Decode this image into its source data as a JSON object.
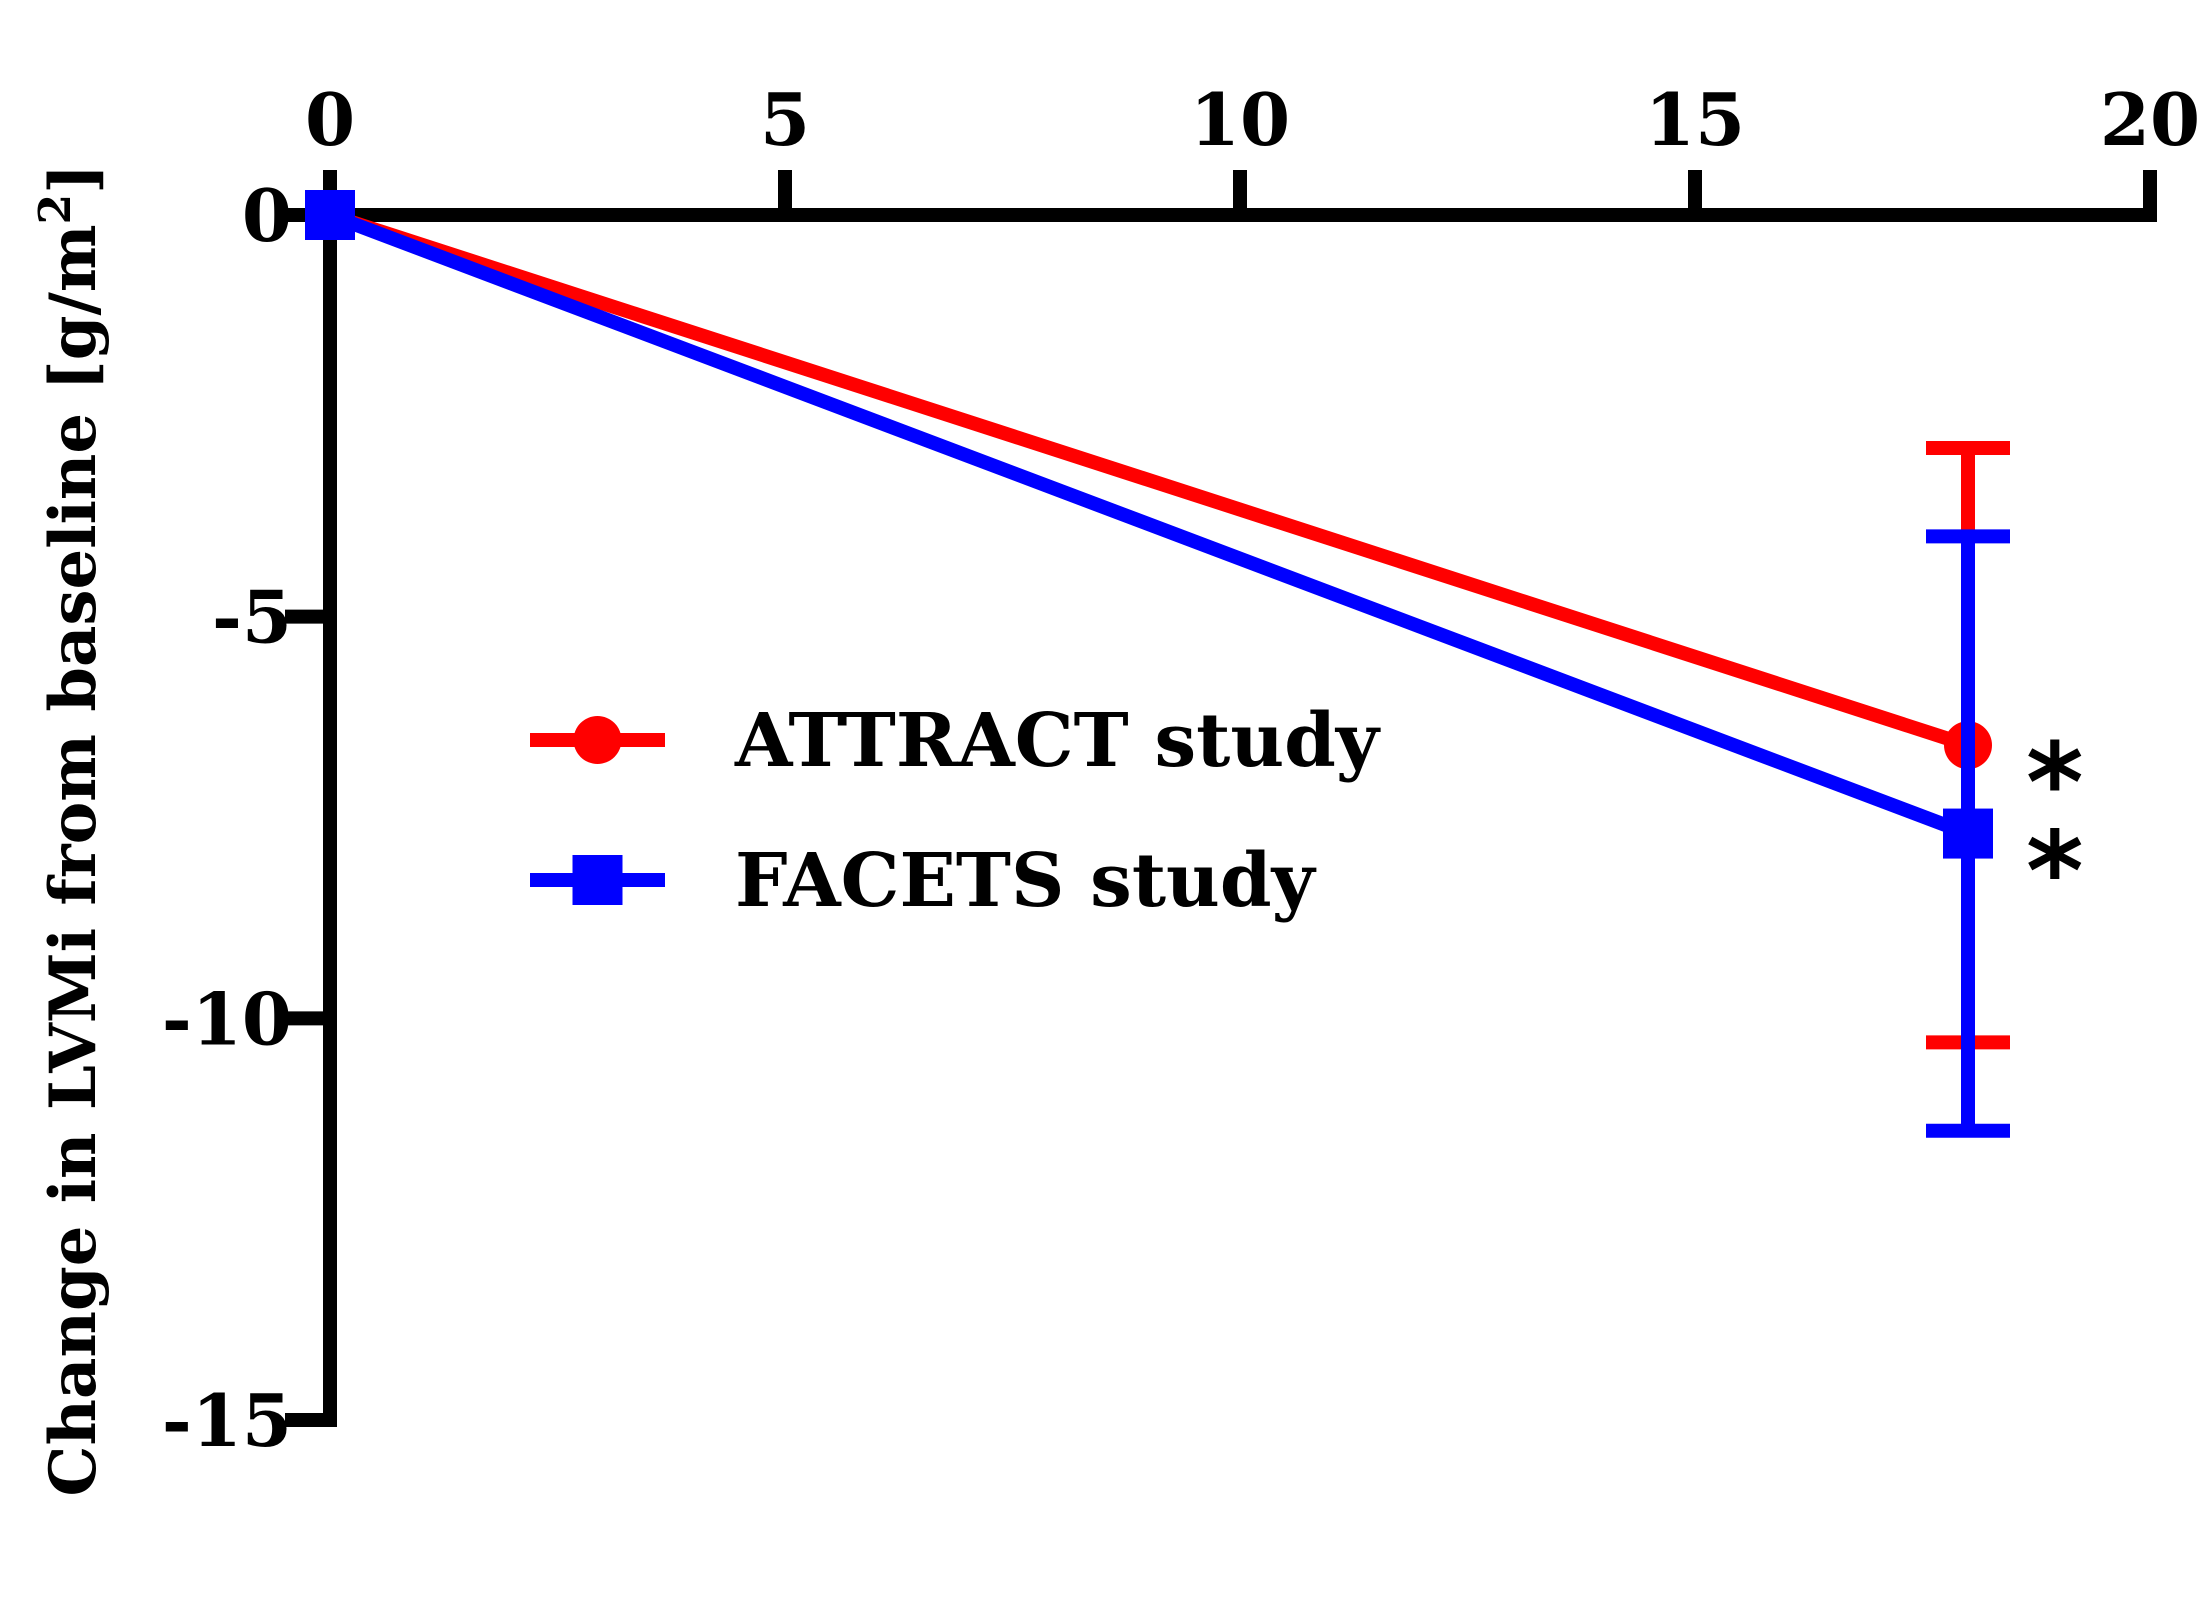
{
  "chart_data": {
    "type": "line",
    "title": "",
    "xlabel": "",
    "ylabel": "Change in LVMi from baseline [g/m",
    "ylabel_superscript": "2",
    "ylabel_close": "]",
    "xlim": [
      0,
      20
    ],
    "ylim": [
      -15,
      0
    ],
    "xticks": [
      0,
      5,
      10,
      15,
      20
    ],
    "yticks": [
      0,
      -5,
      -10,
      -15
    ],
    "xtick_labels": [
      "0",
      "5",
      "10",
      "15",
      "20"
    ],
    "ytick_labels": [
      "0",
      "-5",
      "-10",
      "-15"
    ],
    "grid": false,
    "legend_position": "center",
    "series": [
      {
        "name": "ATTRACT study",
        "color": "#ff0000",
        "marker": "circle",
        "x": [
          0,
          18
        ],
        "y": [
          0,
          -6.6
        ],
        "error_upper": [
          null,
          -2.9
        ],
        "error_lower": [
          null,
          -10.3
        ],
        "annotation": "*"
      },
      {
        "name": "FACETS study",
        "color": "#0000ff",
        "marker": "square",
        "x": [
          0,
          18
        ],
        "y": [
          0,
          -7.7
        ],
        "error_upper": [
          null,
          -4.0
        ],
        "error_lower": [
          null,
          -11.4
        ],
        "annotation": "*"
      }
    ]
  }
}
